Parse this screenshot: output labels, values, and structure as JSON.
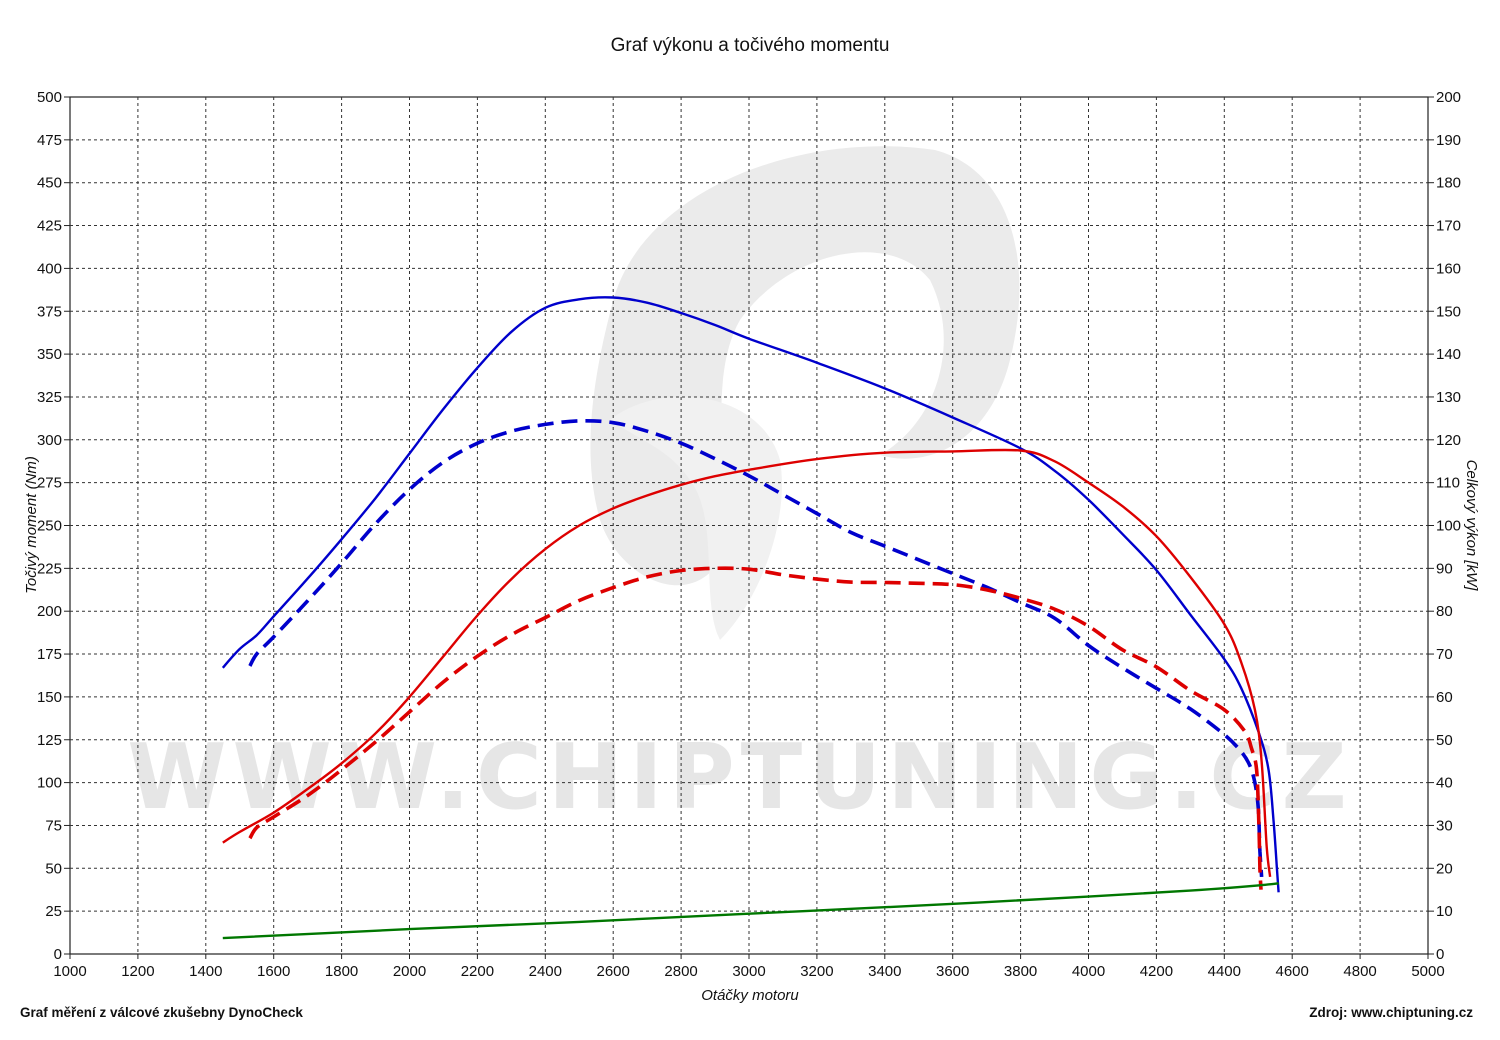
{
  "chart_data": {
    "type": "line",
    "title": "Graf výkonu a točivého momentu",
    "xlabel": "Otáčky motoru",
    "ylabel_left": "Točivý moment (Nm)",
    "ylabel_right": "Celkový výkon [kW]",
    "xlim": [
      1000,
      5000
    ],
    "ylim_left": [
      0,
      500
    ],
    "ylim_right": [
      0,
      200
    ],
    "x_ticks": [
      "1000",
      "1200",
      "1400",
      "1600",
      "1800",
      "2000",
      "2200",
      "2400",
      "2600",
      "2800",
      "3000",
      "3200",
      "3400",
      "3600",
      "3800",
      "4000",
      "4200",
      "4400",
      "4600",
      "4800",
      "5000"
    ],
    "y_left_ticks": [
      "0",
      "25",
      "50",
      "75",
      "100",
      "125",
      "150",
      "175",
      "200",
      "225",
      "250",
      "275",
      "300",
      "325",
      "350",
      "375",
      "400",
      "425",
      "450",
      "475",
      "500"
    ],
    "y_right_ticks": [
      "0",
      "10",
      "20",
      "30",
      "40",
      "50",
      "60",
      "70",
      "80",
      "90",
      "100",
      "110",
      "120",
      "130",
      "140",
      "150",
      "160",
      "170",
      "180",
      "190",
      "200"
    ],
    "grid": true,
    "legend": "none",
    "watermark": "WWW.CHIPTUNING.CZ",
    "series": [
      {
        "axis": "left",
        "color": "#0000cc",
        "dash": false,
        "points": [
          [
            1450,
            167
          ],
          [
            1500,
            178
          ],
          [
            1550,
            186
          ],
          [
            1600,
            197
          ],
          [
            1700,
            219
          ],
          [
            1800,
            242
          ],
          [
            1900,
            266
          ],
          [
            2000,
            292
          ],
          [
            2100,
            318
          ],
          [
            2200,
            342
          ],
          [
            2300,
            363
          ],
          [
            2400,
            377
          ],
          [
            2500,
            382
          ],
          [
            2600,
            383
          ],
          [
            2700,
            380
          ],
          [
            2800,
            374
          ],
          [
            2900,
            367
          ],
          [
            3000,
            359
          ],
          [
            3200,
            345
          ],
          [
            3400,
            330
          ],
          [
            3600,
            313
          ],
          [
            3800,
            295
          ],
          [
            3900,
            282
          ],
          [
            4000,
            265
          ],
          [
            4100,
            245
          ],
          [
            4200,
            224
          ],
          [
            4300,
            198
          ],
          [
            4400,
            172
          ],
          [
            4450,
            155
          ],
          [
            4500,
            130
          ],
          [
            4530,
            108
          ],
          [
            4545,
            78
          ],
          [
            4555,
            50
          ],
          [
            4560,
            36
          ]
        ]
      },
      {
        "axis": "left",
        "color": "#0000cc",
        "dash": true,
        "points": [
          [
            1530,
            168
          ],
          [
            1550,
            175
          ],
          [
            1600,
            185
          ],
          [
            1700,
            206
          ],
          [
            1800,
            228
          ],
          [
            1900,
            251
          ],
          [
            2000,
            271
          ],
          [
            2100,
            287
          ],
          [
            2200,
            298
          ],
          [
            2300,
            305
          ],
          [
            2400,
            309
          ],
          [
            2500,
            311
          ],
          [
            2600,
            310
          ],
          [
            2700,
            305
          ],
          [
            2800,
            298
          ],
          [
            2900,
            289
          ],
          [
            3000,
            279
          ],
          [
            3100,
            268
          ],
          [
            3200,
            257
          ],
          [
            3300,
            246
          ],
          [
            3400,
            238
          ],
          [
            3500,
            230
          ],
          [
            3600,
            222
          ],
          [
            3700,
            214
          ],
          [
            3800,
            205
          ],
          [
            3900,
            196
          ],
          [
            4000,
            180
          ],
          [
            4100,
            167
          ],
          [
            4200,
            155
          ],
          [
            4300,
            143
          ],
          [
            4400,
            128
          ],
          [
            4450,
            118
          ],
          [
            4475,
            110
          ],
          [
            4490,
            100
          ],
          [
            4500,
            85
          ],
          [
            4505,
            60
          ],
          [
            4510,
            45
          ]
        ]
      },
      {
        "axis": "right",
        "color": "#dd0000",
        "dash": false,
        "points": [
          [
            1450,
            26
          ],
          [
            1500,
            28.5
          ],
          [
            1600,
            33
          ],
          [
            1700,
            38.5
          ],
          [
            1800,
            44.5
          ],
          [
            1900,
            51.5
          ],
          [
            2000,
            60
          ],
          [
            2100,
            69.5
          ],
          [
            2200,
            79
          ],
          [
            2300,
            87.5
          ],
          [
            2400,
            94.5
          ],
          [
            2500,
            100
          ],
          [
            2600,
            104
          ],
          [
            2700,
            107
          ],
          [
            2800,
            109.5
          ],
          [
            2900,
            111.5
          ],
          [
            3000,
            113
          ],
          [
            3200,
            115.5
          ],
          [
            3400,
            117
          ],
          [
            3600,
            117.3
          ],
          [
            3800,
            117.5
          ],
          [
            3900,
            115
          ],
          [
            4000,
            110
          ],
          [
            4100,
            104.5
          ],
          [
            4200,
            97.5
          ],
          [
            4300,
            88
          ],
          [
            4400,
            77
          ],
          [
            4450,
            68
          ],
          [
            4490,
            57
          ],
          [
            4510,
            45
          ],
          [
            4525,
            25
          ],
          [
            4535,
            18
          ]
        ]
      },
      {
        "axis": "right",
        "color": "#dd0000",
        "dash": true,
        "points": [
          [
            1530,
            27
          ],
          [
            1550,
            29.5
          ],
          [
            1600,
            32
          ],
          [
            1700,
            37
          ],
          [
            1800,
            43
          ],
          [
            1900,
            49.5
          ],
          [
            2000,
            56.5
          ],
          [
            2100,
            63.5
          ],
          [
            2200,
            69.5
          ],
          [
            2300,
            74.5
          ],
          [
            2400,
            78.5
          ],
          [
            2500,
            82.5
          ],
          [
            2600,
            85.5
          ],
          [
            2700,
            88
          ],
          [
            2800,
            89.5
          ],
          [
            2900,
            90
          ],
          [
            3000,
            89.8
          ],
          [
            3100,
            88.5
          ],
          [
            3200,
            87.5
          ],
          [
            3300,
            86.8
          ],
          [
            3400,
            86.7
          ],
          [
            3500,
            86.5
          ],
          [
            3600,
            86.2
          ],
          [
            3700,
            85
          ],
          [
            3800,
            83
          ],
          [
            3900,
            80.5
          ],
          [
            4000,
            76.5
          ],
          [
            4100,
            71
          ],
          [
            4200,
            67
          ],
          [
            4300,
            61.5
          ],
          [
            4400,
            57
          ],
          [
            4460,
            52
          ],
          [
            4480,
            48
          ],
          [
            4495,
            43
          ],
          [
            4502,
            30
          ],
          [
            4505,
            20
          ],
          [
            4508,
            15
          ]
        ]
      },
      {
        "axis": "right",
        "color": "#007700",
        "dash": false,
        "points": [
          [
            1450,
            3.7
          ],
          [
            2000,
            5.8
          ],
          [
            2500,
            7.5
          ],
          [
            3000,
            9.4
          ],
          [
            3500,
            11.3
          ],
          [
            4000,
            13.4
          ],
          [
            4300,
            14.8
          ],
          [
            4500,
            16
          ],
          [
            4560,
            16.5
          ]
        ]
      }
    ]
  },
  "footer": {
    "left": "Graf měření z válcové zkušebny DynoCheck",
    "right": "Zdroj: www.chiptuning.cz"
  }
}
